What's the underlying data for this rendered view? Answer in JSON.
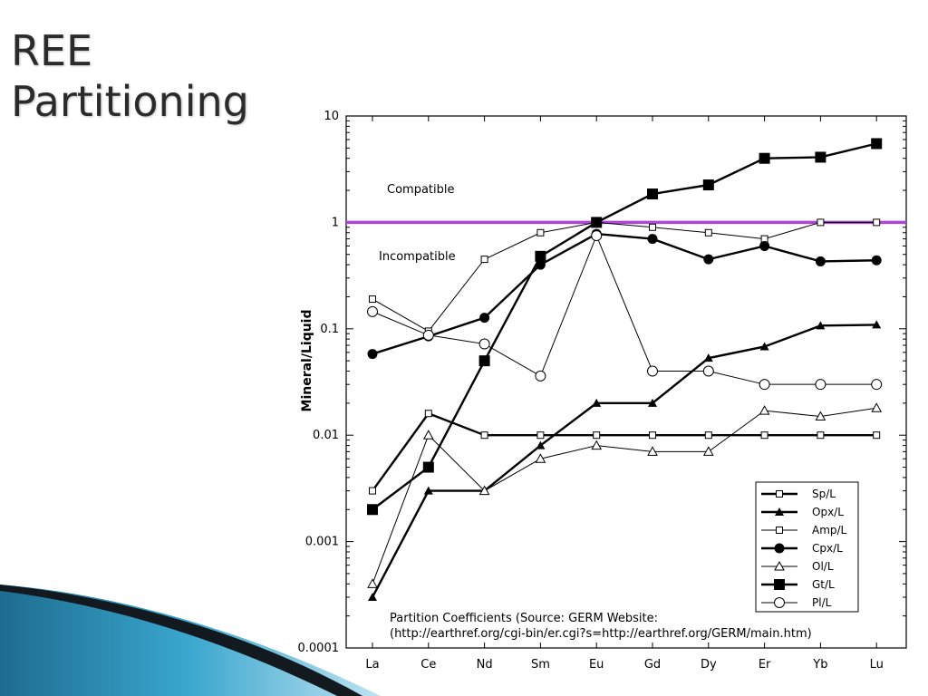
{
  "slide": {
    "title_line1": "REE",
    "title_line2": "Partitioning"
  },
  "chart_data": {
    "type": "line",
    "title": "",
    "xlabel": "",
    "ylabel": "Mineral/Liquid",
    "yscale": "log",
    "ylim": [
      0.0001,
      10
    ],
    "ytick_labels": [
      "10",
      "1",
      "0.1",
      "0.01",
      "0.001",
      "0.0001"
    ],
    "categories": [
      "La",
      "Ce",
      "Nd",
      "Sm",
      "Eu",
      "Gd",
      "Dy",
      "Er",
      "Yb",
      "Lu"
    ],
    "reference_line": {
      "y": 1,
      "color": "#b044d8"
    },
    "region_labels": {
      "above": "Compatible",
      "below": "Incompatible"
    },
    "legend_position": "bottom-right",
    "source_note_line1": "Partition Coefficients (Source: GERM Website:",
    "source_note_line2": "(http://earthref.org/cgi-bin/er.cgi?s=http://earthref.org/GERM/main.htm)",
    "series": [
      {
        "name": "Sp/L",
        "marker": "open-square-small",
        "line": "thick",
        "values": [
          0.003,
          0.016,
          0.01,
          0.01,
          0.01,
          0.01,
          0.01,
          0.01,
          0.01,
          0.01
        ]
      },
      {
        "name": "Opx/L",
        "marker": "filled-triangle",
        "line": "thick",
        "values": [
          0.0003,
          0.003,
          0.003,
          0.008,
          0.02,
          0.02,
          0.053,
          0.068,
          0.107,
          0.109
        ]
      },
      {
        "name": "Amp/L",
        "marker": "open-square-small",
        "line": "thin",
        "values": [
          0.19,
          0.095,
          0.45,
          0.8,
          1.0,
          0.9,
          0.8,
          0.7,
          1.0,
          1.0
        ]
      },
      {
        "name": "Cpx/L",
        "marker": "filled-circle",
        "line": "thick",
        "values": [
          0.058,
          0.085,
          0.127,
          0.4,
          0.78,
          0.7,
          0.45,
          0.6,
          0.43,
          0.44
        ]
      },
      {
        "name": "Ol/L",
        "marker": "open-triangle",
        "line": "thin",
        "values": [
          0.0004,
          0.01,
          0.003,
          0.006,
          0.008,
          0.007,
          0.007,
          0.017,
          0.015,
          0.018
        ]
      },
      {
        "name": "Gt/L",
        "marker": "filled-square",
        "line": "thick",
        "values": [
          0.002,
          0.005,
          0.05,
          0.48,
          1.0,
          1.85,
          2.25,
          4.0,
          4.1,
          5.5
        ]
      },
      {
        "name": "Pl/L",
        "marker": "open-circle",
        "line": "thin",
        "values": [
          0.145,
          0.087,
          0.072,
          0.036,
          0.75,
          0.04,
          0.04,
          0.03,
          0.03,
          0.03
        ]
      }
    ]
  }
}
